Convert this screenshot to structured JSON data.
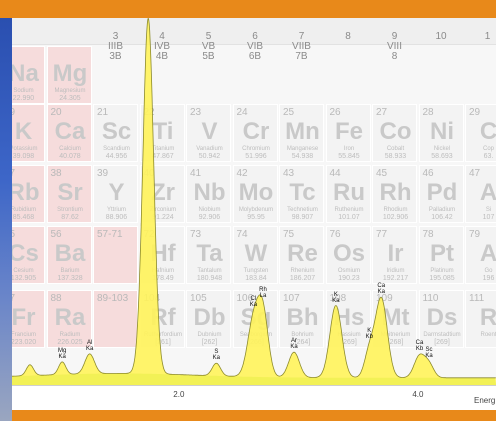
{
  "groups": [
    {
      "col": 3,
      "roman": "3",
      "us": "IIIB",
      "eu": "3B"
    },
    {
      "col": 4,
      "roman": "4",
      "us": "IVB",
      "eu": "4B"
    },
    {
      "col": 5,
      "roman": "5",
      "us": "VB",
      "eu": "5B"
    },
    {
      "col": 6,
      "roman": "6",
      "us": "VIB",
      "eu": "6B"
    },
    {
      "col": 7,
      "roman": "7",
      "us": "VIIB",
      "eu": "7B"
    },
    {
      "col": 8,
      "roman": "8",
      "us": "",
      "eu": ""
    },
    {
      "col": 9,
      "roman": "9",
      "us": "VIII",
      "eu": "8"
    },
    {
      "col": 10,
      "roman": "10",
      "us": "",
      "eu": ""
    },
    {
      "col": 11,
      "roman": "1",
      "us": "",
      "eu": ""
    }
  ],
  "elements": [
    {
      "row": 0,
      "col": 1,
      "num": "",
      "sym": "Na",
      "name": "Sodium",
      "mass": "22.990"
    },
    {
      "row": 0,
      "col": 2,
      "num": "",
      "sym": "Mg",
      "name": "Magnesium",
      "mass": "24.305"
    },
    {
      "row": 1,
      "col": 1,
      "num": "19",
      "sym": "K",
      "name": "Potassium",
      "mass": "39.098"
    },
    {
      "row": 1,
      "col": 2,
      "num": "20",
      "sym": "Ca",
      "name": "Calcium",
      "mass": "40.078"
    },
    {
      "row": 1,
      "col": 3,
      "num": "21",
      "sym": "Sc",
      "name": "Scandium",
      "mass": "44.956"
    },
    {
      "row": 1,
      "col": 4,
      "num": "22",
      "sym": "Ti",
      "name": "Titanium",
      "mass": "47.867"
    },
    {
      "row": 1,
      "col": 5,
      "num": "23",
      "sym": "V",
      "name": "Vanadium",
      "mass": "50.942"
    },
    {
      "row": 1,
      "col": 6,
      "num": "24",
      "sym": "Cr",
      "name": "Chromium",
      "mass": "51.996"
    },
    {
      "row": 1,
      "col": 7,
      "num": "25",
      "sym": "Mn",
      "name": "Manganese",
      "mass": "54.938"
    },
    {
      "row": 1,
      "col": 8,
      "num": "26",
      "sym": "Fe",
      "name": "Iron",
      "mass": "55.845"
    },
    {
      "row": 1,
      "col": 9,
      "num": "27",
      "sym": "Co",
      "name": "Cobalt",
      "mass": "58.933"
    },
    {
      "row": 1,
      "col": 10,
      "num": "28",
      "sym": "Ni",
      "name": "Nickel",
      "mass": "58.693"
    },
    {
      "row": 1,
      "col": 11,
      "num": "29",
      "sym": "C",
      "name": "Cop",
      "mass": "63."
    },
    {
      "row": 2,
      "col": 1,
      "num": "37",
      "sym": "Rb",
      "name": "Rubidium",
      "mass": "85.468"
    },
    {
      "row": 2,
      "col": 2,
      "num": "38",
      "sym": "Sr",
      "name": "Strontium",
      "mass": "87.62"
    },
    {
      "row": 2,
      "col": 3,
      "num": "39",
      "sym": "Y",
      "name": "Yttrium",
      "mass": "88.906"
    },
    {
      "row": 2,
      "col": 4,
      "num": "40",
      "sym": "Zr",
      "name": "Zirconium",
      "mass": "91.224"
    },
    {
      "row": 2,
      "col": 5,
      "num": "41",
      "sym": "Nb",
      "name": "Niobium",
      "mass": "92.906"
    },
    {
      "row": 2,
      "col": 6,
      "num": "42",
      "sym": "Mo",
      "name": "Molybdenum",
      "mass": "95.95"
    },
    {
      "row": 2,
      "col": 7,
      "num": "43",
      "sym": "Tc",
      "name": "Technetium",
      "mass": "98.907"
    },
    {
      "row": 2,
      "col": 8,
      "num": "44",
      "sym": "Ru",
      "name": "Ruthenium",
      "mass": "101.07"
    },
    {
      "row": 2,
      "col": 9,
      "num": "45",
      "sym": "Rh",
      "name": "Rhodium",
      "mass": "102.906"
    },
    {
      "row": 2,
      "col": 10,
      "num": "46",
      "sym": "Pd",
      "name": "Palladium",
      "mass": "106.42"
    },
    {
      "row": 2,
      "col": 11,
      "num": "47",
      "sym": "A",
      "name": "Si",
      "mass": "107"
    },
    {
      "row": 3,
      "col": 1,
      "num": "55",
      "sym": "Cs",
      "name": "Cesium",
      "mass": "132.905"
    },
    {
      "row": 3,
      "col": 2,
      "num": "56",
      "sym": "Ba",
      "name": "Barium",
      "mass": "137.328"
    },
    {
      "row": 3,
      "col": 3,
      "num": "57-71",
      "sym": "",
      "name": "",
      "mass": ""
    },
    {
      "row": 3,
      "col": 4,
      "num": "72",
      "sym": "Hf",
      "name": "Hafnium",
      "mass": "178.49"
    },
    {
      "row": 3,
      "col": 5,
      "num": "73",
      "sym": "Ta",
      "name": "Tantalum",
      "mass": "180.948"
    },
    {
      "row": 3,
      "col": 6,
      "num": "74",
      "sym": "W",
      "name": "Tungsten",
      "mass": "183.84"
    },
    {
      "row": 3,
      "col": 7,
      "num": "75",
      "sym": "Re",
      "name": "Rhenium",
      "mass": "186.207"
    },
    {
      "row": 3,
      "col": 8,
      "num": "76",
      "sym": "Os",
      "name": "Osmium",
      "mass": "190.23"
    },
    {
      "row": 3,
      "col": 9,
      "num": "77",
      "sym": "Ir",
      "name": "Iridium",
      "mass": "192.217"
    },
    {
      "row": 3,
      "col": 10,
      "num": "78",
      "sym": "Pt",
      "name": "Platinum",
      "mass": "195.085"
    },
    {
      "row": 3,
      "col": 11,
      "num": "79",
      "sym": "A",
      "name": "Go",
      "mass": "196"
    },
    {
      "row": 4,
      "col": 1,
      "num": "87",
      "sym": "Fr",
      "name": "Francium",
      "mass": "223.020"
    },
    {
      "row": 4,
      "col": 2,
      "num": "88",
      "sym": "Ra",
      "name": "Radium",
      "mass": "226.025"
    },
    {
      "row": 4,
      "col": 3,
      "num": "89-103",
      "sym": "",
      "name": "",
      "mass": ""
    },
    {
      "row": 4,
      "col": 4,
      "num": "104",
      "sym": "Rf",
      "name": "Rutherfordium",
      "mass": "[261]"
    },
    {
      "row": 4,
      "col": 5,
      "num": "105",
      "sym": "Db",
      "name": "Dubnium",
      "mass": "[262]"
    },
    {
      "row": 4,
      "col": 6,
      "num": "106",
      "sym": "Sg",
      "name": "Seaborgium",
      "mass": "[266]"
    },
    {
      "row": 4,
      "col": 7,
      "num": "107",
      "sym": "Bh",
      "name": "Bohrium",
      "mass": "[264]"
    },
    {
      "row": 4,
      "col": 8,
      "num": "108",
      "sym": "Hs",
      "name": "Hassium",
      "mass": "[269]"
    },
    {
      "row": 4,
      "col": 9,
      "num": "109",
      "sym": "Mt",
      "name": "Meitnerium",
      "mass": "[268]"
    },
    {
      "row": 4,
      "col": 10,
      "num": "110",
      "sym": "Ds",
      "name": "Darmstadtium",
      "mass": "[269]"
    },
    {
      "row": 4,
      "col": 11,
      "num": "111",
      "sym": "R",
      "name": "Roent",
      "mass": ""
    }
  ],
  "colors": {
    "frame": "#e8891a",
    "spectrum_fill": "#fff35a",
    "spectrum_line": "#8c8a2c",
    "background_band": "#7ddc39",
    "pink_cells": "#f6d8d8"
  },
  "chart_data": {
    "type": "area",
    "title": "",
    "xlabel": "Energ",
    "ylabel": "",
    "xlim": [
      0.6,
      4.65
    ],
    "ylim": [
      0,
      1.0
    ],
    "x_ticks": [
      "2.0",
      "4.0"
    ],
    "x_tick_values": [
      2.0,
      4.0
    ],
    "grid": false,
    "peaks": [
      {
        "x": 0.75,
        "height": 0.03,
        "width": 0.03,
        "labels": []
      },
      {
        "x": 1.02,
        "height": 0.035,
        "width": 0.03,
        "labels": [
          "Mg",
          "Ka"
        ]
      },
      {
        "x": 1.25,
        "height": 0.055,
        "width": 0.04,
        "labels": [
          "Al",
          "Ka"
        ]
      },
      {
        "x": 1.74,
        "height": 0.985,
        "width": 0.045,
        "labels": [
          "Si",
          "Ka"
        ]
      },
      {
        "x": 2.31,
        "height": 0.035,
        "width": 0.035,
        "labels": [
          "S",
          "Ka"
        ]
      },
      {
        "x": 2.62,
        "height": 0.15,
        "width": 0.05,
        "labels": [
          "Cl",
          "Ka"
        ]
      },
      {
        "x": 2.7,
        "height": 0.17,
        "width": 0.045,
        "labels": [
          "Rh",
          "La"
        ]
      },
      {
        "x": 2.96,
        "height": 0.07,
        "width": 0.045,
        "labels": [
          "Ar",
          "Ka"
        ]
      },
      {
        "x": 3.31,
        "height": 0.2,
        "width": 0.05,
        "labels": [
          "K",
          "Ka"
        ]
      },
      {
        "x": 3.59,
        "height": 0.07,
        "width": 0.04,
        "labels": [
          "K",
          "Kb"
        ]
      },
      {
        "x": 3.69,
        "height": 0.22,
        "width": 0.05,
        "labels": [
          "Ca",
          "Ka"
        ]
      },
      {
        "x": 4.01,
        "height": 0.06,
        "width": 0.045,
        "labels": [
          "Ca",
          "Kb"
        ]
      },
      {
        "x": 4.09,
        "height": 0.035,
        "width": 0.04,
        "labels": [
          "Sc",
          "Ka"
        ]
      }
    ],
    "background_level": 0.02
  }
}
